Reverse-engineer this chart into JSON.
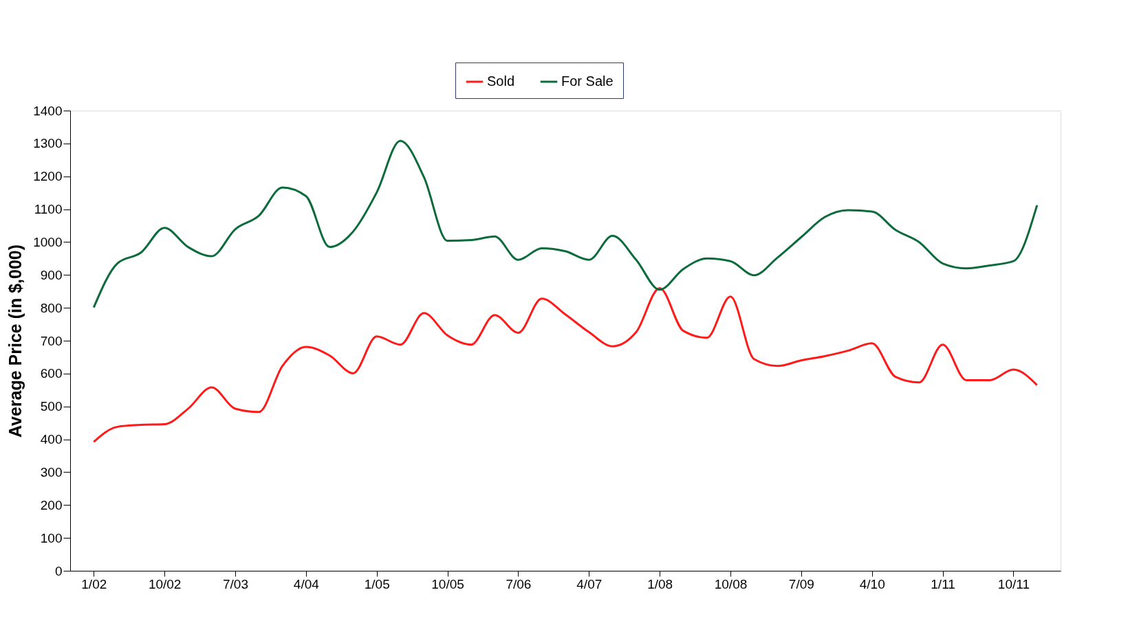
{
  "chart_data": {
    "type": "line",
    "ylabel": "Average Price (in $,000)",
    "categories": [
      "1/02",
      null,
      null,
      "10/02",
      null,
      null,
      "7/03",
      null,
      null,
      "4/04",
      null,
      null,
      "1/05",
      null,
      null,
      "10/05",
      null,
      null,
      "7/06",
      null,
      null,
      "4/07",
      null,
      null,
      "1/08",
      null,
      null,
      "10/08",
      null,
      null,
      "7/09",
      null,
      null,
      "4/10",
      null,
      null,
      "1/11",
      null,
      null,
      "10/11",
      null
    ],
    "series": [
      {
        "name": "Sold",
        "color": "#ff1a1a",
        "values": [
          392,
          438,
          444,
          446,
          493,
          558,
          493,
          483,
          623,
          681,
          655,
          601,
          713,
          688,
          784,
          716,
          688,
          778,
          724,
          828,
          780,
          726,
          683,
          726,
          860,
          730,
          709,
          834,
          644,
          623,
          640,
          653,
          670,
          692,
          590,
          573,
          688,
          580,
          580,
          612,
          565
        ]
      },
      {
        "name": "For Sale",
        "color": "#0b6b3a",
        "values": [
          801,
          935,
          968,
          1043,
          985,
          957,
          1039,
          1080,
          1166,
          1140,
          985,
          1032,
          1151,
          1308,
          1198,
          1004,
          1006,
          1017,
          946,
          981,
          972,
          946,
          1019,
          946,
          855,
          918,
          950,
          942,
          899,
          953,
          1015,
          1076,
          1097,
          1093,
          1037,
          1000,
          935,
          920,
          929,
          942,
          1112
        ]
      }
    ],
    "ylim": [
      0,
      1400
    ],
    "yticks": [
      0,
      100,
      200,
      300,
      400,
      500,
      600,
      700,
      800,
      900,
      1000,
      1100,
      1200,
      1300,
      1400
    ],
    "grid": false,
    "legend": "top",
    "marker": "none",
    "line_style": "solid"
  }
}
